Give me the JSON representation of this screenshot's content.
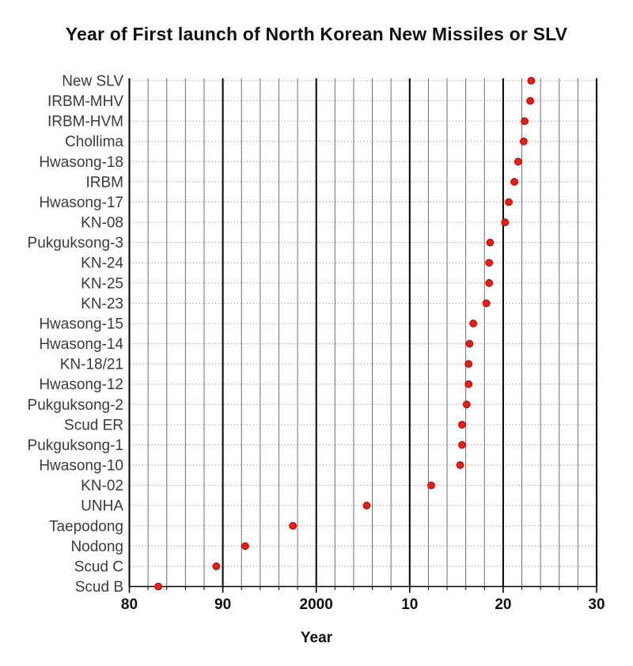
{
  "page": {
    "background": "#ffffff"
  },
  "chart_data": {
    "type": "scatter",
    "variant": "horizontal-dot-plot",
    "title": "Year of First launch of North Korean New Missiles or SLV",
    "xlabel": "Year",
    "xlim": [
      1980,
      2030
    ],
    "xtick_values": [
      1980,
      1990,
      2000,
      2010,
      2020,
      2030
    ],
    "xtick_labels": [
      "80",
      "90",
      "2000",
      "10",
      "20",
      "30"
    ],
    "minor_xtick_step_years": 2,
    "grid": true,
    "legend": false,
    "marker": {
      "shape": "circle",
      "color": "#ed1c16"
    },
    "categories": [
      "New SLV",
      "IRBM-MHV",
      "IRBM-HVM",
      "Chollima",
      "Hwasong-18",
      "IRBM",
      "Hwasong-17",
      "KN-08",
      "Pukguksong-3",
      "KN-24",
      "KN-25",
      "KN-23",
      "Hwasong-15",
      "Hwasong-14",
      "KN-18/21",
      "Hwasong-12",
      "Pukguksong-2",
      "Scud ER",
      "Pukguksong-1",
      "Hwasong-10",
      "KN-02",
      "UNHA",
      "Taepodong",
      "Nodong",
      "Scud C",
      "Scud B"
    ],
    "values": [
      2023.0,
      2022.9,
      2022.3,
      2022.2,
      2021.6,
      2021.2,
      2020.6,
      2020.2,
      2018.6,
      2018.5,
      2018.5,
      2018.2,
      2016.8,
      2016.4,
      2016.3,
      2016.3,
      2016.1,
      2015.6,
      2015.6,
      2015.4,
      2012.3,
      2005.4,
      1997.5,
      1992.4,
      1989.3,
      1983.1
    ]
  },
  "colors": {
    "background": "#ffffff",
    "marker_fill": "#ed1c16",
    "marker_edge": "#b50d08",
    "major_grid": "#000000",
    "minor_grid": "#6e6e6e",
    "row_grid": "#a8a8a8",
    "axis": "#000000",
    "title_text": "#111111",
    "category_text": "#3a3a3a",
    "tick_text": "#111111"
  }
}
